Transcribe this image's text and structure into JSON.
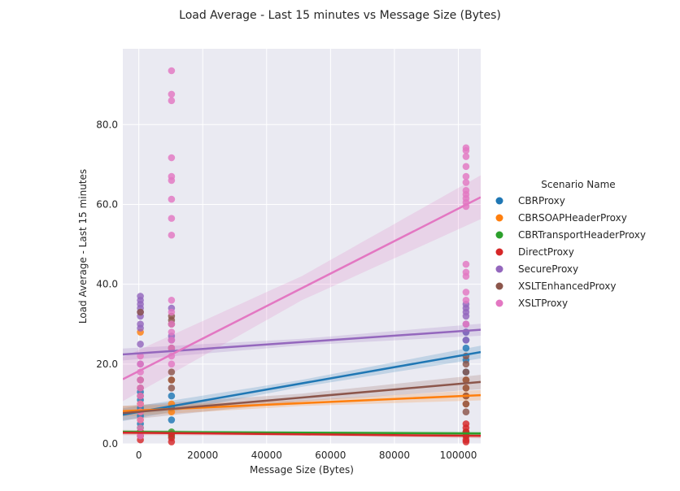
{
  "chart_data": {
    "type": "scatter",
    "title": "Load Average - Last 15 minutes vs Message Size (Bytes)",
    "xlabel": "Message Size (Bytes)",
    "ylabel": "Load Average - Last 15 minutes",
    "xlim": [
      -5000,
      107000
    ],
    "ylim": [
      0,
      99
    ],
    "x_ticks": [
      0,
      20000,
      40000,
      60000,
      80000,
      100000
    ],
    "x_tick_labels": [
      "0",
      "20000",
      "40000",
      "60000",
      "80000",
      "100000"
    ],
    "y_ticks": [
      0,
      20,
      40,
      60,
      80
    ],
    "y_tick_labels": [
      "0.0",
      "20.0",
      "40.0",
      "60.0",
      "80.0"
    ],
    "grid": true,
    "legend_title": "Scenario Name",
    "legend_position": "right",
    "series": [
      {
        "name": "CBRProxy",
        "color": "#1f77b4",
        "points": [
          [
            500,
            5
          ],
          [
            500,
            7
          ],
          [
            500,
            9
          ],
          [
            500,
            11
          ],
          [
            500,
            13
          ],
          [
            10240,
            6
          ],
          [
            10240,
            9
          ],
          [
            10240,
            12
          ],
          [
            102400,
            18
          ],
          [
            102400,
            21
          ],
          [
            102400,
            24
          ],
          [
            102400,
            26
          ],
          [
            102400,
            28
          ]
        ],
        "trend": {
          "start": [
            -5000,
            7.3
          ],
          "end": [
            107000,
            23
          ],
          "band": 1.6
        }
      },
      {
        "name": "CBRSOAPHeaderProxy",
        "color": "#ff7f0e",
        "points": [
          [
            500,
            6
          ],
          [
            500,
            8
          ],
          [
            500,
            10
          ],
          [
            500,
            28
          ],
          [
            10240,
            8
          ],
          [
            10240,
            10
          ],
          [
            10240,
            16
          ],
          [
            102400,
            10
          ],
          [
            102400,
            12
          ],
          [
            102400,
            14
          ],
          [
            102400,
            16
          ]
        ],
        "trend": {
          "start": [
            -5000,
            8.2
          ],
          "end": [
            107000,
            12.2
          ],
          "band": 1.3
        }
      },
      {
        "name": "CBRTransportHeaderProxy",
        "color": "#2ca02c",
        "points": [
          [
            500,
            2
          ],
          [
            500,
            3
          ],
          [
            500,
            4
          ],
          [
            10240,
            2
          ],
          [
            10240,
            3
          ],
          [
            102400,
            2
          ],
          [
            102400,
            3
          ]
        ],
        "trend": {
          "start": [
            -5000,
            3.0
          ],
          "end": [
            107000,
            2.6
          ],
          "band": 0.5
        }
      },
      {
        "name": "DirectProxy",
        "color": "#d62728",
        "points": [
          [
            500,
            1
          ],
          [
            500,
            2
          ],
          [
            500,
            3
          ],
          [
            10240,
            0.5
          ],
          [
            10240,
            1.5
          ],
          [
            10240,
            2.5
          ],
          [
            102400,
            0.5
          ],
          [
            102400,
            1
          ],
          [
            102400,
            2
          ],
          [
            102400,
            3
          ],
          [
            102400,
            4
          ],
          [
            102400,
            5
          ]
        ],
        "trend": {
          "start": [
            -5000,
            2.8
          ],
          "end": [
            107000,
            2.0
          ],
          "band": 0.6
        }
      },
      {
        "name": "SecureProxy",
        "color": "#9467bd",
        "points": [
          [
            500,
            20
          ],
          [
            500,
            25
          ],
          [
            500,
            29
          ],
          [
            500,
            30
          ],
          [
            500,
            32
          ],
          [
            500,
            33
          ],
          [
            500,
            34
          ],
          [
            500,
            35
          ],
          [
            500,
            36
          ],
          [
            500,
            37
          ],
          [
            10240,
            26
          ],
          [
            10240,
            27
          ],
          [
            10240,
            34
          ],
          [
            102400,
            26
          ],
          [
            102400,
            28
          ],
          [
            102400,
            30
          ],
          [
            102400,
            32
          ],
          [
            102400,
            33
          ],
          [
            102400,
            34
          ],
          [
            102400,
            35
          ]
        ],
        "trend": {
          "start": [
            -5000,
            22.4
          ],
          "end": [
            107000,
            28.6
          ],
          "band": 1.5
        }
      },
      {
        "name": "XSLTEnhancedProxy",
        "color": "#8c564b",
        "points": [
          [
            500,
            12
          ],
          [
            500,
            14
          ],
          [
            500,
            16
          ],
          [
            500,
            33
          ],
          [
            10240,
            14
          ],
          [
            10240,
            16
          ],
          [
            10240,
            18
          ],
          [
            10240,
            24
          ],
          [
            10240,
            30
          ],
          [
            10240,
            31
          ],
          [
            10240,
            32
          ],
          [
            102400,
            8
          ],
          [
            102400,
            10
          ],
          [
            102400,
            12
          ],
          [
            102400,
            14
          ],
          [
            102400,
            16
          ],
          [
            102400,
            18
          ],
          [
            102400,
            20
          ],
          [
            102400,
            22
          ]
        ],
        "trend": {
          "start": [
            -5000,
            7.7
          ],
          "end": [
            107000,
            15.5
          ],
          "band": 1.8
        }
      },
      {
        "name": "XSLTProxy",
        "color": "#e377c2",
        "points": [
          [
            500,
            2
          ],
          [
            500,
            4
          ],
          [
            500,
            6
          ],
          [
            500,
            8
          ],
          [
            500,
            10
          ],
          [
            500,
            12
          ],
          [
            500,
            14
          ],
          [
            500,
            16
          ],
          [
            500,
            18
          ],
          [
            500,
            20
          ],
          [
            500,
            22
          ],
          [
            10240,
            20
          ],
          [
            10240,
            22
          ],
          [
            10240,
            24
          ],
          [
            10240,
            26
          ],
          [
            10240,
            28
          ],
          [
            10240,
            30
          ],
          [
            10240,
            33
          ],
          [
            10240,
            36
          ],
          [
            10240,
            52.3
          ],
          [
            10240,
            56.5
          ],
          [
            10240,
            61.3
          ],
          [
            10240,
            66
          ],
          [
            10240,
            67
          ],
          [
            10240,
            71.7
          ],
          [
            10240,
            86
          ],
          [
            10240,
            87.6
          ],
          [
            10240,
            93.5
          ],
          [
            102400,
            30
          ],
          [
            102400,
            36
          ],
          [
            102400,
            38
          ],
          [
            102400,
            42
          ],
          [
            102400,
            43
          ],
          [
            102400,
            45
          ],
          [
            102400,
            59.5
          ],
          [
            102400,
            60.5
          ],
          [
            102400,
            61.5
          ],
          [
            102400,
            62.5
          ],
          [
            102400,
            63.5
          ],
          [
            102400,
            65.5
          ],
          [
            102400,
            67
          ],
          [
            102400,
            69.5
          ],
          [
            102400,
            72
          ],
          [
            102400,
            73.5
          ],
          [
            102400,
            74.2
          ]
        ],
        "trend": {
          "start": [
            -5000,
            16.2
          ],
          "end": [
            107000,
            61.8
          ],
          "band": 5.5
        }
      }
    ]
  }
}
